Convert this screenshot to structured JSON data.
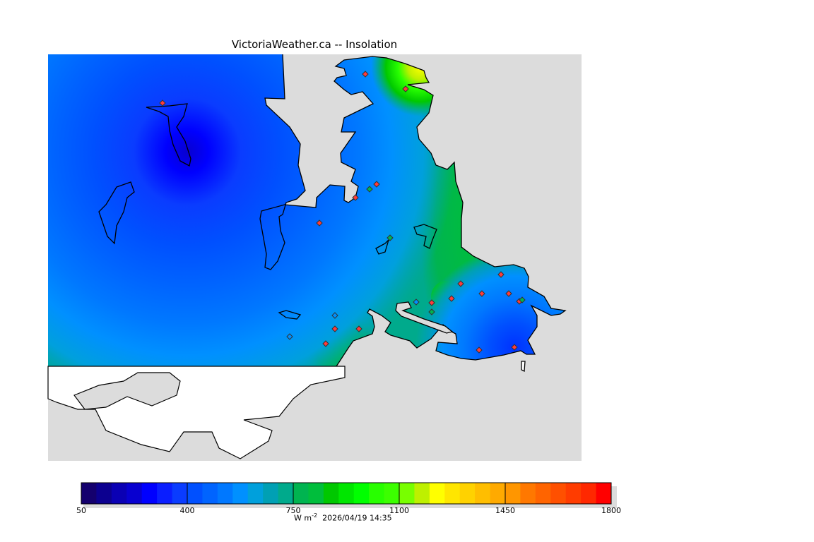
{
  "title": "VictoriaWeather.ca  --  Insolation",
  "colorbar": {
    "min": 50,
    "max": 1800,
    "step": 50,
    "tick_labels": [
      "50",
      "400",
      "750",
      "1100",
      "1450",
      "1800"
    ],
    "colors": [
      "#14006e",
      "#0c0090",
      "#0a00b4",
      "#0800d0",
      "#0000ff",
      "#0a1eff",
      "#0a3cff",
      "#0050ff",
      "#0064ff",
      "#0078ff",
      "#0090ff",
      "#00a0dc",
      "#00a0b4",
      "#00aa8c",
      "#00b450",
      "#00be3c",
      "#00c800",
      "#00e600",
      "#00ff00",
      "#28ff00",
      "#3cff00",
      "#78ff00",
      "#bef000",
      "#ffff00",
      "#ffe600",
      "#ffd200",
      "#ffbe00",
      "#ffaa00",
      "#ff9600",
      "#ff7800",
      "#ff6400",
      "#ff5000",
      "#ff3c00",
      "#ff2800",
      "#ff0000"
    ]
  },
  "units": {
    "base": "W m",
    "exponent": "-2"
  },
  "timestamp": "2026/04/19 14:35",
  "colors": {
    "land_masked": "#dcdcdc",
    "outside": "#ffffff",
    "coast": "#000000",
    "station": "#ff3030"
  }
}
